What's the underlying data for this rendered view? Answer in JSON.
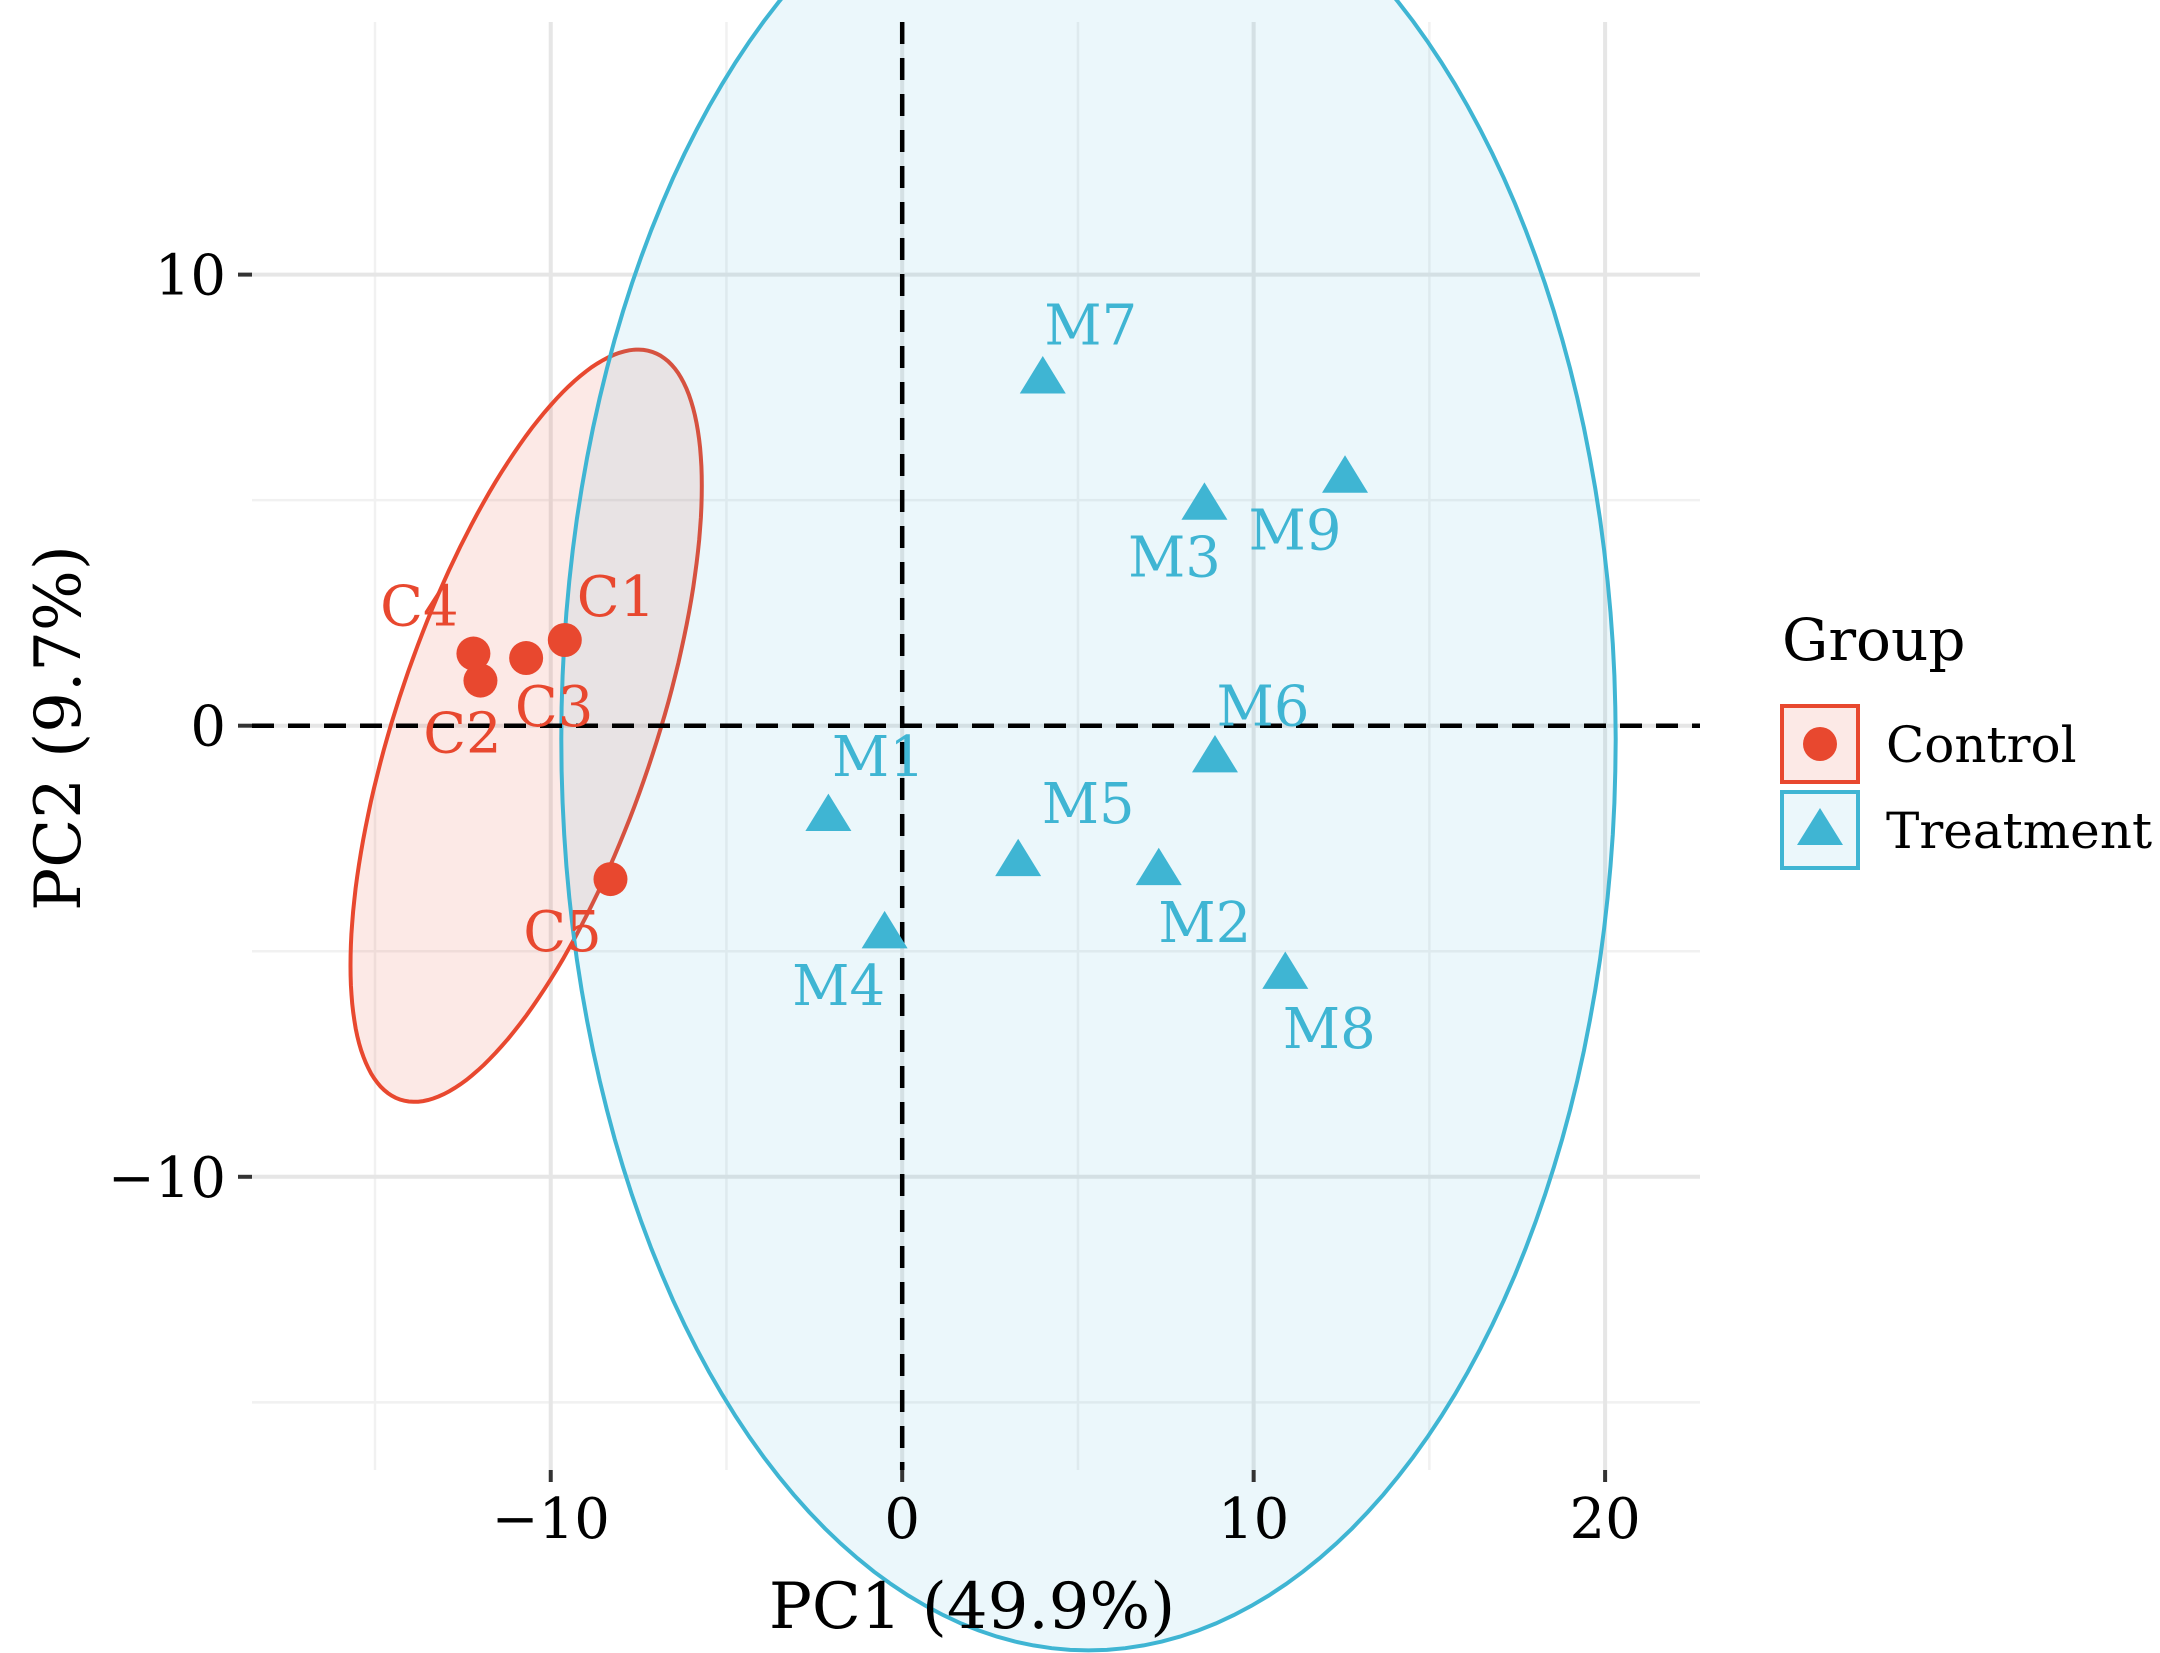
{
  "chart_data": {
    "type": "scatter",
    "title": "",
    "xlabel": "PC1 (49.9%)",
    "ylabel": "PC2 (9.7%)",
    "xlim": [
      -18.5,
      22.7
    ],
    "ylim": [
      -16.5,
      15.6
    ],
    "x_ticks": [
      -10,
      0,
      10,
      20
    ],
    "x_tick_labels": [
      "−10",
      "0",
      "10",
      "20"
    ],
    "x_minor_ticks": [
      -15,
      -5,
      5,
      15
    ],
    "y_ticks": [
      -10,
      0,
      10
    ],
    "y_tick_labels": [
      "−10",
      "0",
      "10"
    ],
    "y_minor_ticks": [
      -15,
      -5,
      5
    ],
    "grid": true,
    "reference_lines": {
      "x": 0,
      "y": 0,
      "style": "dashed"
    },
    "legend": {
      "title": "Group",
      "position": "right",
      "entries": [
        {
          "label": "Control",
          "shape": "circle",
          "color": "#e8482f"
        },
        {
          "label": "Treatment",
          "shape": "triangle",
          "color": "#3fb5d3"
        }
      ]
    },
    "series": [
      {
        "name": "Control",
        "shape": "circle",
        "color": "#e8482f",
        "ellipse": {
          "cx": -10.7,
          "cy": 0.0,
          "rx": 9.05,
          "ry": 3.55,
          "angle_deg": 65
        },
        "points": [
          {
            "label": "C1",
            "x": -9.6,
            "y": 1.9
          },
          {
            "label": "C2",
            "x": -12.0,
            "y": 1.0
          },
          {
            "label": "C3",
            "x": -10.7,
            "y": 1.5
          },
          {
            "label": "C4",
            "x": -12.2,
            "y": 1.6
          },
          {
            "label": "C5",
            "x": -8.3,
            "y": -3.4
          }
        ]
      },
      {
        "name": "Treatment",
        "shape": "triangle",
        "color": "#3fb5d3",
        "ellipse": {
          "cx": 5.3,
          "cy": -0.3,
          "rx": 15.0,
          "ry": 20.2,
          "angle_deg": 0
        },
        "points": [
          {
            "label": "M1",
            "x": -2.1,
            "y": -2.0
          },
          {
            "label": "M2",
            "x": 7.3,
            "y": -3.2
          },
          {
            "label": "M3",
            "x": 8.6,
            "y": 4.9
          },
          {
            "label": "M4",
            "x": -0.5,
            "y": -4.6
          },
          {
            "label": "M5",
            "x": 3.3,
            "y": -3.0
          },
          {
            "label": "M6",
            "x": 8.9,
            "y": -0.7
          },
          {
            "label": "M7",
            "x": 4.0,
            "y": 7.7
          },
          {
            "label": "M8",
            "x": 10.9,
            "y": -5.5
          },
          {
            "label": "M9",
            "x": 12.6,
            "y": 5.5
          }
        ]
      }
    ]
  }
}
